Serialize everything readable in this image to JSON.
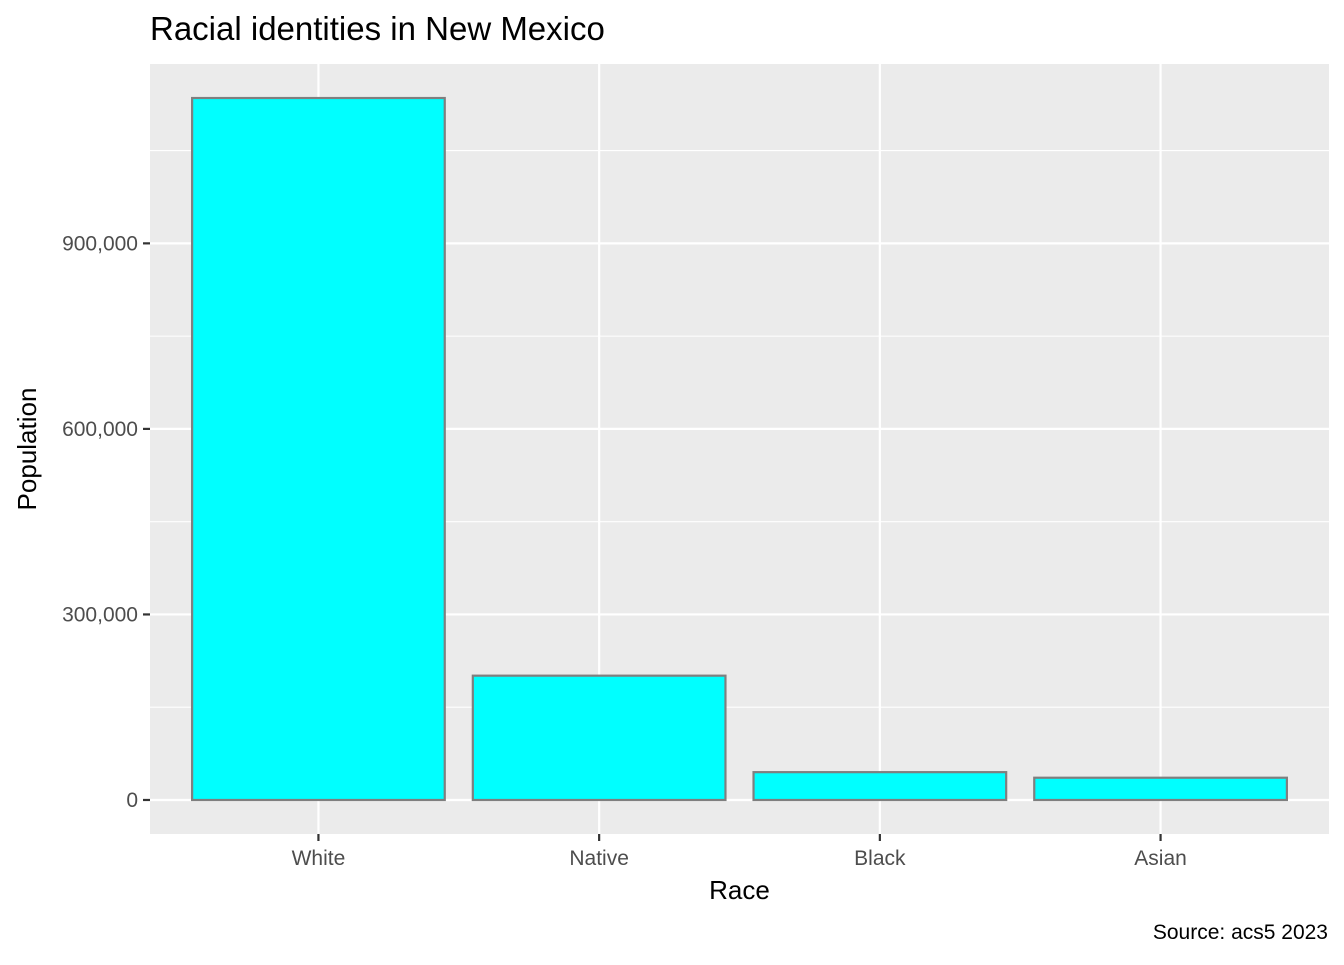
{
  "chart_data": {
    "type": "bar",
    "title": "Racial identities in New Mexico",
    "xlabel": "Race",
    "ylabel": "Population",
    "caption": "Source: acs5 2023",
    "categories": [
      "White",
      "Native",
      "Black",
      "Asian"
    ],
    "values": [
      1135000,
      201000,
      45000,
      36000
    ],
    "ylim": [
      -55000,
      1190000
    ],
    "yticks": [
      0,
      300000,
      600000,
      900000
    ],
    "ytick_labels": [
      "0",
      "300,000",
      "600,000",
      "900,000"
    ],
    "grid": true,
    "legend": "none",
    "colors": {
      "bar_fill": "#00FFFF",
      "bar_stroke": "#7F7F7F",
      "panel_background": "#EBEBEB",
      "grid": "#FFFFFF",
      "text": "#000000",
      "tick_text": "#4D4D4D",
      "tick_mark": "#333333"
    }
  }
}
